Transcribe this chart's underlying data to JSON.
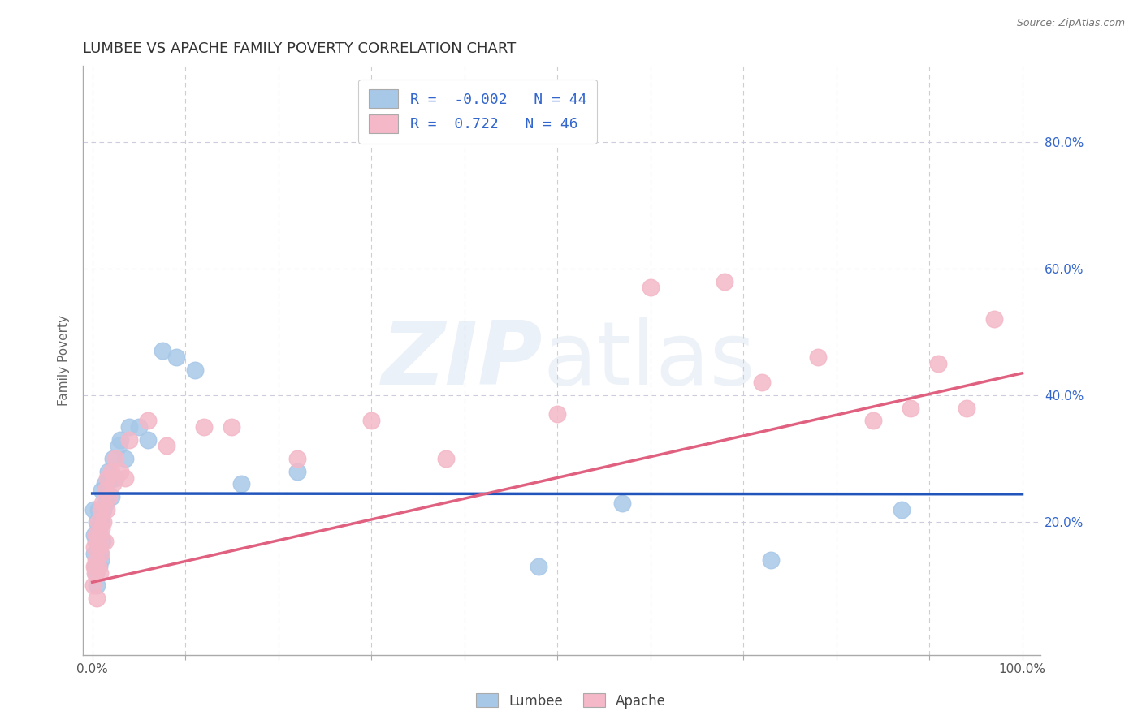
{
  "title": "LUMBEE VS APACHE FAMILY POVERTY CORRELATION CHART",
  "source_text": "Source: ZipAtlas.com",
  "ylabel": "Family Poverty",
  "xlim": [
    -0.01,
    1.02
  ],
  "ylim": [
    -0.01,
    0.92
  ],
  "lumbee_R": -0.002,
  "lumbee_N": 44,
  "apache_R": 0.722,
  "apache_N": 46,
  "lumbee_color": "#a8c8e8",
  "apache_color": "#f4b8c8",
  "lumbee_line_color": "#2255bb",
  "apache_line_color": "#e06080",
  "background_color": "#ffffff",
  "grid_color": "#ccccdd",
  "title_color": "#333333",
  "tick_color": "#555555",
  "source_color": "#777777",
  "legend_text_color": "#3366cc",
  "lumbee_x": [
    0.001,
    0.002,
    0.002,
    0.003,
    0.004,
    0.004,
    0.005,
    0.005,
    0.006,
    0.006,
    0.007,
    0.007,
    0.008,
    0.008,
    0.008,
    0.009,
    0.009,
    0.01,
    0.01,
    0.011,
    0.012,
    0.013,
    0.014,
    0.015,
    0.017,
    0.018,
    0.02,
    0.022,
    0.025,
    0.028,
    0.03,
    0.035,
    0.04,
    0.05,
    0.06,
    0.075,
    0.09,
    0.11,
    0.16,
    0.22,
    0.48,
    0.57,
    0.73,
    0.87
  ],
  "lumbee_y": [
    0.22,
    0.18,
    0.15,
    0.13,
    0.12,
    0.17,
    0.1,
    0.2,
    0.16,
    0.22,
    0.13,
    0.19,
    0.15,
    0.18,
    0.22,
    0.14,
    0.2,
    0.21,
    0.25,
    0.17,
    0.22,
    0.26,
    0.23,
    0.25,
    0.28,
    0.27,
    0.24,
    0.3,
    0.27,
    0.32,
    0.33,
    0.3,
    0.35,
    0.35,
    0.33,
    0.47,
    0.46,
    0.44,
    0.26,
    0.28,
    0.13,
    0.23,
    0.14,
    0.22
  ],
  "apache_x": [
    0.001,
    0.002,
    0.002,
    0.003,
    0.004,
    0.004,
    0.005,
    0.005,
    0.006,
    0.006,
    0.007,
    0.008,
    0.008,
    0.009,
    0.009,
    0.01,
    0.011,
    0.012,
    0.013,
    0.014,
    0.015,
    0.016,
    0.018,
    0.02,
    0.022,
    0.025,
    0.03,
    0.035,
    0.04,
    0.06,
    0.08,
    0.12,
    0.15,
    0.22,
    0.3,
    0.38,
    0.5,
    0.6,
    0.68,
    0.72,
    0.78,
    0.84,
    0.88,
    0.91,
    0.94,
    0.97
  ],
  "apache_y": [
    0.1,
    0.13,
    0.16,
    0.12,
    0.18,
    0.14,
    0.08,
    0.17,
    0.13,
    0.2,
    0.16,
    0.12,
    0.18,
    0.15,
    0.22,
    0.19,
    0.23,
    0.2,
    0.17,
    0.25,
    0.22,
    0.27,
    0.24,
    0.28,
    0.26,
    0.3,
    0.28,
    0.27,
    0.33,
    0.36,
    0.32,
    0.35,
    0.35,
    0.3,
    0.36,
    0.3,
    0.37,
    0.57,
    0.58,
    0.42,
    0.46,
    0.36,
    0.38,
    0.45,
    0.38,
    0.52
  ],
  "lumbee_line_x0": 0.0,
  "lumbee_line_x1": 1.0,
  "lumbee_line_y0": 0.245,
  "lumbee_line_y1": 0.244,
  "apache_line_x0": 0.0,
  "apache_line_x1": 1.0,
  "apache_line_y0": 0.105,
  "apache_line_y1": 0.435,
  "watermark_zip": "ZIP",
  "watermark_atlas": "atlas"
}
